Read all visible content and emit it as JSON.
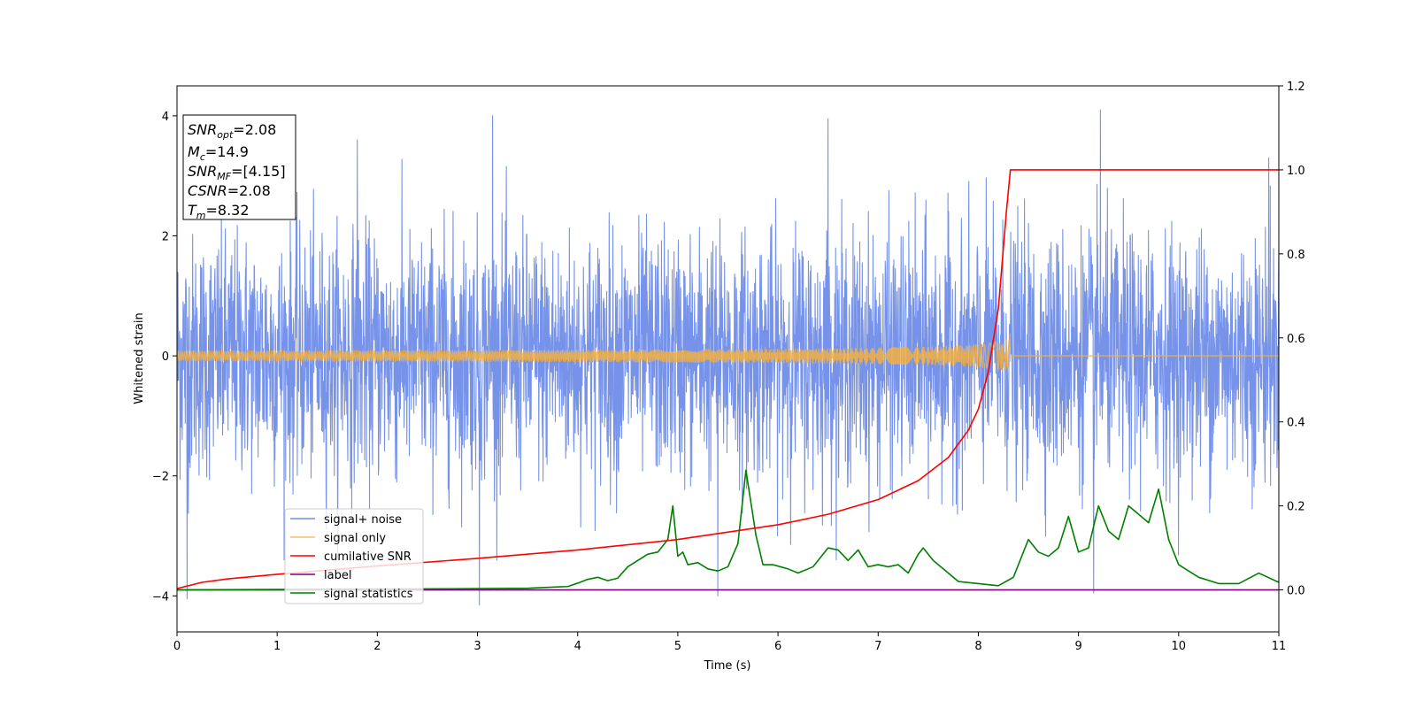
{
  "chart_data": {
    "type": "line",
    "xlabel": "Time (s)",
    "ylabel": "Whitened strain",
    "xlim": [
      0,
      11
    ],
    "ylim": [
      -4.6,
      4.5
    ],
    "y2lim": [
      -0.1,
      1.2
    ],
    "x_ticks": [
      0,
      1,
      2,
      3,
      4,
      5,
      6,
      7,
      8,
      9,
      10,
      11
    ],
    "y_ticks": [
      -4,
      -2,
      0,
      2,
      4
    ],
    "y_tick_labels": [
      "−4",
      "−2",
      "0",
      "2",
      "4"
    ],
    "y2_ticks": [
      0.0,
      0.2,
      0.4,
      0.6,
      0.8,
      1.0,
      1.2
    ],
    "y2_tick_labels": [
      "0.0",
      "0.2",
      "0.4",
      "0.6",
      "0.8",
      "1.0",
      "1.2"
    ],
    "legend_position": "lower-left",
    "grid": false,
    "info_box": [
      {
        "main": "SNR",
        "sub": "opt",
        "value": "=2.08"
      },
      {
        "main": "M",
        "sub": "c",
        "value": "=14.9"
      },
      {
        "main": "SNR",
        "sub": "MF",
        "value": "=[4.15]"
      },
      {
        "main": "CSNR",
        "sub": "",
        "value": "=2.08"
      },
      {
        "main": "T",
        "sub": "m",
        "value": "=8.32"
      }
    ],
    "series": [
      {
        "name": "signal+ noise",
        "axis": "left",
        "color": "#4169e1",
        "kind": "noise",
        "x_range": [
          0,
          11
        ],
        "sigma": 1.0,
        "extremes": [
          {
            "x": 0.1,
            "y": -4.05
          },
          {
            "x": 1.8,
            "y": 3.6
          },
          {
            "x": 3.02,
            "y": -4.15
          },
          {
            "x": 3.15,
            "y": 4.0
          },
          {
            "x": 5.4,
            "y": -4.0
          },
          {
            "x": 6.5,
            "y": 3.95
          },
          {
            "x": 9.15,
            "y": -3.95
          },
          {
            "x": 9.22,
            "y": 4.1
          },
          {
            "x": 10.9,
            "y": 3.3
          }
        ]
      },
      {
        "name": "signal only",
        "axis": "left",
        "color": "#f5b041",
        "kind": "chirp",
        "x_range": [
          0,
          8.32
        ],
        "amplitude_end": 0.4
      },
      {
        "name": "cumilative SNR",
        "axis": "right",
        "color": "#ff0000",
        "x": [
          0,
          0.25,
          0.5,
          1,
          2,
          3,
          4,
          5,
          6,
          6.5,
          7,
          7.4,
          7.7,
          7.9,
          8.0,
          8.1,
          8.2,
          8.28,
          8.32,
          9,
          10,
          11
        ],
        "y": [
          0.003,
          0.018,
          0.026,
          0.037,
          0.057,
          0.075,
          0.095,
          0.12,
          0.155,
          0.18,
          0.215,
          0.26,
          0.315,
          0.38,
          0.43,
          0.52,
          0.67,
          0.9,
          1.0,
          1.0,
          1.0,
          1.0
        ]
      },
      {
        "name": "label",
        "axis": "right",
        "color": "#800080",
        "x": [
          0,
          11
        ],
        "y": [
          0,
          0
        ]
      },
      {
        "name": "signal statistics",
        "axis": "right",
        "color": "#008000",
        "x": [
          0,
          1,
          2,
          3,
          3.5,
          3.9,
          4.0,
          4.1,
          4.2,
          4.3,
          4.4,
          4.5,
          4.6,
          4.7,
          4.8,
          4.9,
          4.95,
          5.0,
          5.05,
          5.1,
          5.2,
          5.3,
          5.4,
          5.5,
          5.6,
          5.68,
          5.78,
          5.85,
          5.95,
          6.1,
          6.2,
          6.35,
          6.5,
          6.6,
          6.7,
          6.8,
          6.9,
          7.0,
          7.1,
          7.2,
          7.3,
          7.4,
          7.45,
          7.55,
          7.7,
          7.8,
          8.0,
          8.2,
          8.35,
          8.5,
          8.6,
          8.7,
          8.8,
          8.9,
          9.0,
          9.1,
          9.2,
          9.3,
          9.4,
          9.5,
          9.6,
          9.7,
          9.8,
          9.9,
          10.0,
          10.2,
          10.4,
          10.6,
          10.8,
          11.0
        ],
        "y": [
          0.0,
          0.001,
          0.002,
          0.003,
          0.004,
          0.008,
          0.016,
          0.025,
          0.03,
          0.022,
          0.028,
          0.055,
          0.07,
          0.085,
          0.09,
          0.12,
          0.2,
          0.08,
          0.09,
          0.06,
          0.065,
          0.05,
          0.045,
          0.055,
          0.11,
          0.285,
          0.13,
          0.06,
          0.06,
          0.05,
          0.04,
          0.055,
          0.1,
          0.095,
          0.07,
          0.095,
          0.055,
          0.06,
          0.055,
          0.06,
          0.04,
          0.085,
          0.1,
          0.07,
          0.04,
          0.02,
          0.015,
          0.01,
          0.03,
          0.12,
          0.09,
          0.08,
          0.1,
          0.175,
          0.09,
          0.1,
          0.2,
          0.14,
          0.12,
          0.2,
          0.18,
          0.16,
          0.24,
          0.12,
          0.06,
          0.03,
          0.015,
          0.015,
          0.04,
          0.018
        ]
      }
    ]
  }
}
